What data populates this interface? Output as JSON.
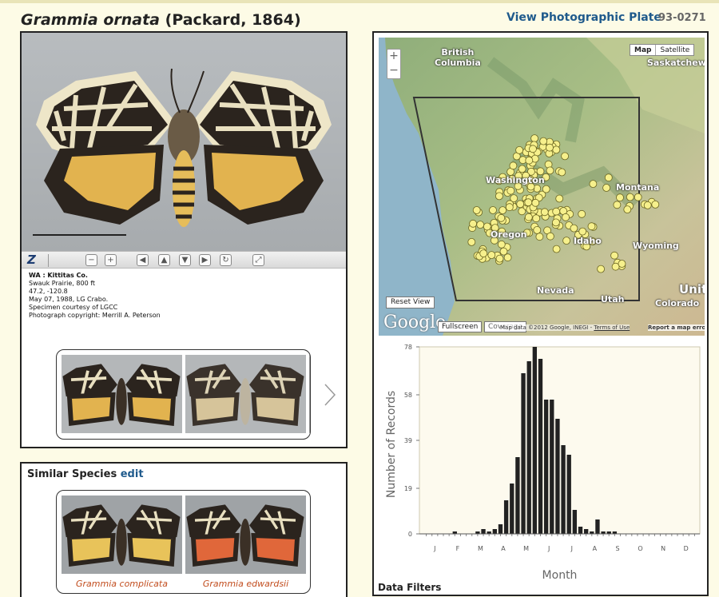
{
  "header": {
    "species_name": "Grammia ornata",
    "authority": "(Packard, 1864)",
    "plate_link": "View Photographic Plate",
    "plate_number": "93-0271"
  },
  "specimen": {
    "location": "WA : Kittitas Co.",
    "lines": [
      "Swauk Prairie, 800 ft",
      "47.2, -120.8",
      "May 07, 1988, LG Crabo.",
      "Specimen courtesy of LGCC",
      "Photograph copyright: Merrill A. Peterson"
    ],
    "toolbar": {
      "logo": "Z",
      "icons": [
        "zoom-out-icon",
        "zoom-in-icon",
        "pan-left-icon",
        "pan-up-icon",
        "pan-down-icon",
        "pan-right-icon",
        "reset-icon",
        "fullscreen-icon"
      ]
    }
  },
  "similar": {
    "title": "Similar Species",
    "edit_label": "edit",
    "species": [
      "Grammia complicata",
      "Grammia edwardsii"
    ]
  },
  "map": {
    "zoom_in": "+",
    "zoom_out": "−",
    "maptype_map": "Map",
    "maptype_satellite": "Satellite",
    "labels": {
      "british_columbia": "British\nColumbia",
      "saskatchewan": "Saskatchewan",
      "washington": "Washington",
      "montana": "Montana",
      "oregon": "Oregon",
      "idaho": "Idaho",
      "wyoming": "Wyoming",
      "nevada": "Nevada",
      "utah": "Utah",
      "colorado": "Colorado",
      "united": "Unit"
    },
    "reset_view": "Reset View",
    "google": "Google",
    "fullscreen": "Fullscreen",
    "coverage": "Coverage",
    "attribution": "Map data ©2012 Google, INEGI - ",
    "terms": "Terms of Use",
    "report": "Report a map error",
    "colors": {
      "point": "#f6f08c",
      "box": "#333333"
    }
  },
  "chart_data": {
    "type": "bar",
    "title": "",
    "xlabel": "Month",
    "ylabel": "Number of Records",
    "ylim": [
      0,
      78
    ],
    "yticks": [
      0,
      19,
      39,
      58,
      78
    ],
    "month_labels": [
      "J",
      "F",
      "M",
      "A",
      "M",
      "J",
      "J",
      "A",
      "S",
      "O",
      "N",
      "D"
    ],
    "bins_per_month": 4,
    "values": [
      0,
      0,
      0,
      0,
      0,
      1,
      0,
      0,
      0,
      1,
      2,
      1,
      2,
      4,
      14,
      21,
      32,
      67,
      72,
      78,
      73,
      56,
      56,
      48,
      37,
      33,
      10,
      3,
      2,
      1,
      6,
      1,
      1,
      1,
      0,
      0,
      0,
      0,
      0,
      0,
      0,
      0,
      0,
      0,
      0,
      0,
      0,
      0
    ],
    "bar_color": "#222222",
    "plot_bg": "#fdfaee"
  },
  "data_filters_label": "Data Filters"
}
